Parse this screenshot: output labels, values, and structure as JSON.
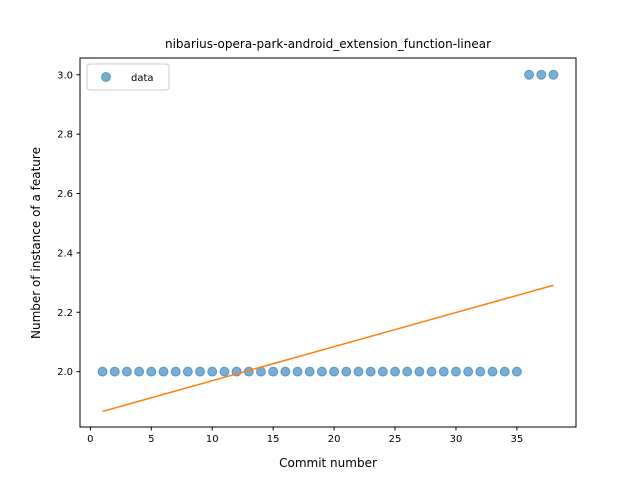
{
  "chart_data": {
    "type": "scatter",
    "title": "nibarius-opera-park-android_extension_function-linear",
    "xlabel": "Commit number",
    "ylabel": "Number of instance of a feature",
    "xlim": [
      -0.85,
      39.85
    ],
    "ylim": [
      1.8135,
      3.0565
    ],
    "xticks": [
      0,
      5,
      10,
      15,
      20,
      25,
      30,
      35
    ],
    "yticks": [
      2.0,
      2.2,
      2.4,
      2.6,
      2.8,
      3.0
    ],
    "ytick_labels": [
      "2.0",
      "2.2",
      "2.4",
      "2.6",
      "2.8",
      "3.0"
    ],
    "grid": false,
    "legend": {
      "position": "top-left",
      "entries": [
        "data"
      ]
    },
    "series": [
      {
        "name": "data",
        "kind": "scatter",
        "color": "#1f77b4",
        "x": [
          1,
          2,
          3,
          4,
          5,
          6,
          7,
          8,
          9,
          10,
          11,
          12,
          13,
          14,
          15,
          16,
          17,
          18,
          19,
          20,
          21,
          22,
          23,
          24,
          25,
          26,
          27,
          28,
          29,
          30,
          31,
          32,
          33,
          34,
          35,
          36,
          37,
          38
        ],
        "y": [
          2,
          2,
          2,
          2,
          2,
          2,
          2,
          2,
          2,
          2,
          2,
          2,
          2,
          2,
          2,
          2,
          2,
          2,
          2,
          2,
          2,
          2,
          2,
          2,
          2,
          2,
          2,
          2,
          2,
          2,
          2,
          2,
          2,
          2,
          2,
          3,
          3,
          3
        ]
      },
      {
        "kind": "line",
        "color": "#ff7f0e",
        "x": [
          1,
          38
        ],
        "y": [
          1.866,
          2.291
        ]
      }
    ]
  }
}
